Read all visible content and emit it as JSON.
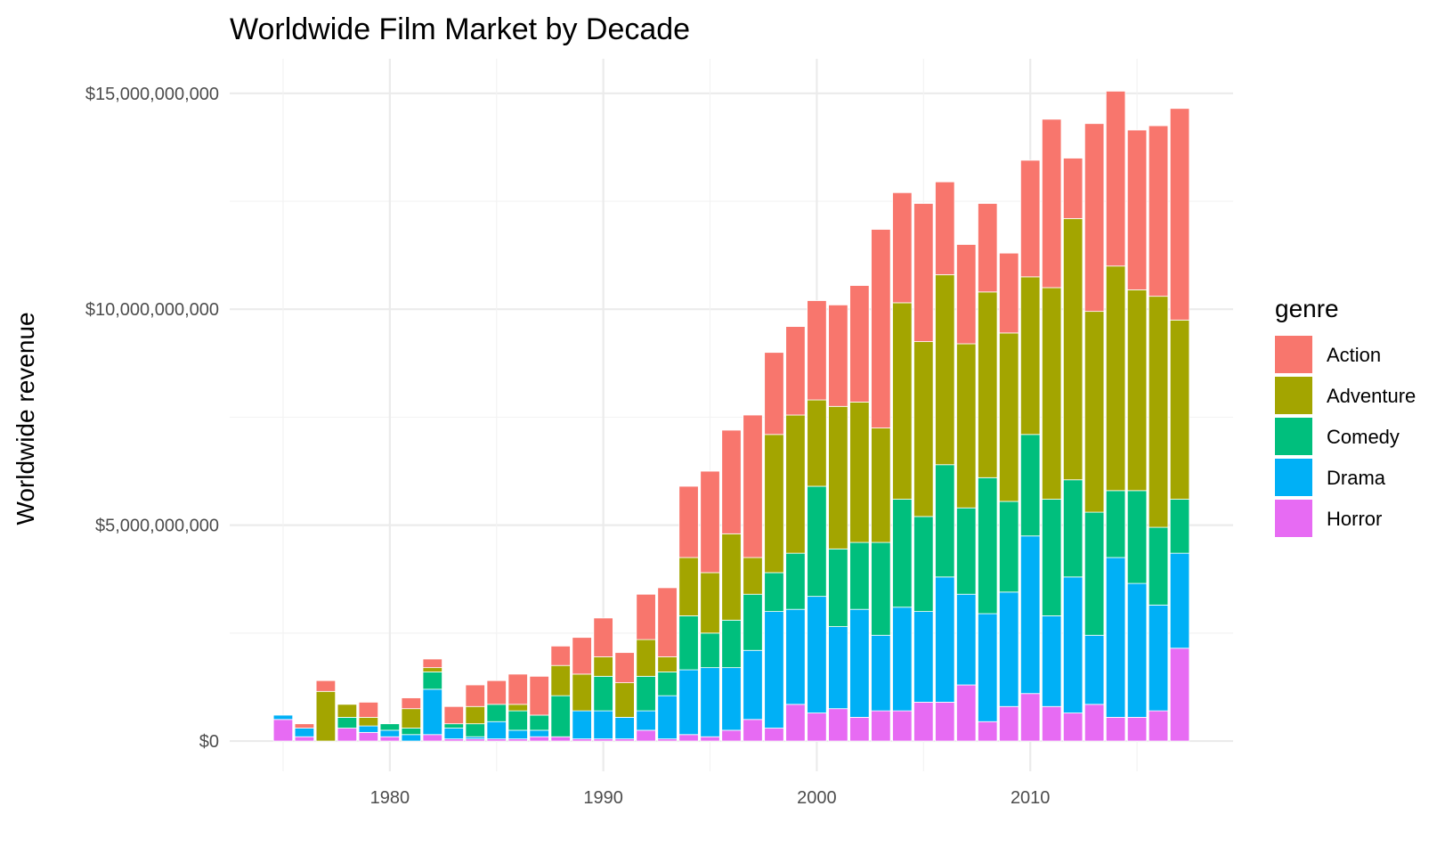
{
  "chart_data": {
    "type": "bar",
    "stacked": true,
    "title": "Worldwide Film Market by Decade",
    "xlabel": "",
    "ylabel": "Worldwide revenue",
    "x": [
      1975,
      1976,
      1977,
      1978,
      1979,
      1980,
      1981,
      1982,
      1983,
      1984,
      1985,
      1986,
      1987,
      1988,
      1989,
      1990,
      1991,
      1992,
      1993,
      1994,
      1995,
      1996,
      1997,
      1998,
      1999,
      2000,
      2001,
      2002,
      2003,
      2004,
      2005,
      2006,
      2007,
      2008,
      2009,
      2010,
      2011,
      2012,
      2013,
      2014,
      2015,
      2016,
      2017
    ],
    "xlim": [
      1972.5,
      2019.5
    ],
    "ylim": [
      -700000000,
      15800000000
    ],
    "x_ticks": [
      1980,
      1990,
      2000,
      2010
    ],
    "x_tick_labels": [
      "1980",
      "1990",
      "2000",
      "2010"
    ],
    "y_ticks": [
      0,
      5000000000,
      10000000000,
      15000000000
    ],
    "y_tick_labels": [
      "$0",
      "$5,000,000,000",
      "$10,000,000,000",
      "$15,000,000,000"
    ],
    "legend": {
      "title": "genre",
      "position": "right",
      "entries": [
        "Action",
        "Adventure",
        "Comedy",
        "Drama",
        "Horror"
      ]
    },
    "grid": true,
    "series": [
      {
        "name": "Horror",
        "color": "#E76BF3",
        "values": [
          500000000,
          100000000,
          0,
          300000000,
          200000000,
          100000000,
          0,
          150000000,
          50000000,
          50000000,
          50000000,
          50000000,
          100000000,
          100000000,
          50000000,
          50000000,
          50000000,
          250000000,
          50000000,
          150000000,
          100000000,
          250000000,
          500000000,
          300000000,
          850000000,
          650000000,
          750000000,
          550000000,
          700000000,
          700000000,
          900000000,
          900000000,
          1300000000,
          450000000,
          800000000,
          1100000000,
          800000000,
          650000000,
          850000000,
          550000000,
          550000000,
          700000000,
          2150000000
        ]
      },
      {
        "name": "Drama",
        "color": "#00B0F6",
        "values": [
          100000000,
          200000000,
          0,
          0,
          150000000,
          150000000,
          150000000,
          1050000000,
          250000000,
          50000000,
          400000000,
          200000000,
          150000000,
          0,
          650000000,
          650000000,
          500000000,
          450000000,
          1000000000,
          1500000000,
          1600000000,
          1450000000,
          1600000000,
          2700000000,
          2200000000,
          2700000000,
          1900000000,
          2500000000,
          1750000000,
          2400000000,
          2100000000,
          2900000000,
          2100000000,
          2500000000,
          2650000000,
          3650000000,
          2100000000,
          3150000000,
          1600000000,
          3700000000,
          3100000000,
          2450000000,
          2200000000
        ]
      },
      {
        "name": "Comedy",
        "color": "#00BF7D",
        "values": [
          0,
          0,
          0,
          250000000,
          0,
          150000000,
          150000000,
          400000000,
          100000000,
          300000000,
          400000000,
          450000000,
          350000000,
          950000000,
          0,
          800000000,
          0,
          800000000,
          550000000,
          1250000000,
          800000000,
          1100000000,
          1300000000,
          900000000,
          1300000000,
          2550000000,
          1800000000,
          1550000000,
          2150000000,
          2500000000,
          2200000000,
          2600000000,
          2000000000,
          3150000000,
          2100000000,
          2350000000,
          2700000000,
          2250000000,
          2850000000,
          1550000000,
          2150000000,
          1800000000,
          1250000000
        ]
      },
      {
        "name": "Adventure",
        "color": "#A3A500",
        "values": [
          0,
          0,
          1150000000,
          300000000,
          200000000,
          0,
          450000000,
          100000000,
          0,
          400000000,
          0,
          150000000,
          0,
          700000000,
          850000000,
          450000000,
          800000000,
          850000000,
          350000000,
          1350000000,
          1400000000,
          2000000000,
          850000000,
          3200000000,
          3200000000,
          2000000000,
          3300000000,
          3250000000,
          2650000000,
          4550000000,
          4050000000,
          4400000000,
          3800000000,
          4300000000,
          3900000000,
          3650000000,
          4900000000,
          6050000000,
          4650000000,
          5200000000,
          4650000000,
          5350000000,
          4150000000
        ]
      },
      {
        "name": "Action",
        "color": "#F8766D",
        "values": [
          0,
          100000000,
          250000000,
          0,
          350000000,
          0,
          250000000,
          200000000,
          400000000,
          500000000,
          550000000,
          700000000,
          900000000,
          450000000,
          850000000,
          900000000,
          700000000,
          1050000000,
          1600000000,
          1650000000,
          2350000000,
          2400000000,
          3300000000,
          1900000000,
          2050000000,
          2300000000,
          2350000000,
          2700000000,
          4600000000,
          2550000000,
          3200000000,
          2150000000,
          2300000000,
          2050000000,
          1850000000,
          2700000000,
          3900000000,
          1400000000,
          4350000000,
          4050000000,
          3700000000,
          3950000000,
          4900000000
        ]
      }
    ]
  }
}
